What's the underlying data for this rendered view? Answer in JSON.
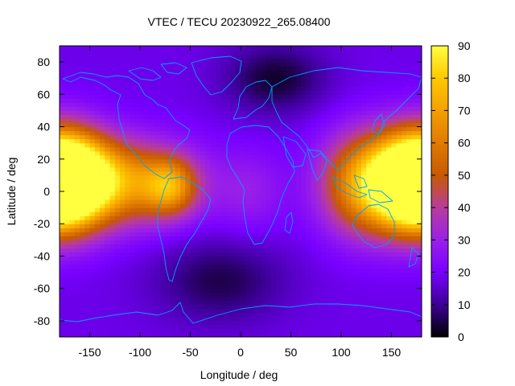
{
  "chart_data": {
    "type": "heatmap",
    "title": "VTEC / TECU 20230922_265.08400",
    "xlabel": "Longitude / deg",
    "ylabel": "Latitude / deg",
    "xlim": [
      -180,
      180
    ],
    "ylim": [
      -90,
      90
    ],
    "xticks": [
      -150,
      -100,
      -50,
      0,
      50,
      100,
      150
    ],
    "yticks": [
      -80,
      -60,
      -40,
      -20,
      0,
      20,
      40,
      60,
      80
    ],
    "colorbar": {
      "range": [
        0,
        90
      ],
      "ticks": [
        0,
        10,
        20,
        30,
        40,
        50,
        60,
        70,
        80,
        90
      ],
      "colormap": [
        "#000000",
        "#3c0096",
        "#7800ff",
        "#a82cd8",
        "#c85a00",
        "#e88400",
        "#ffc800",
        "#ffff40"
      ]
    },
    "grid": {
      "lon_step": 5,
      "lat_step": 2.5
    },
    "features": [
      {
        "lon": -175,
        "lat": 8,
        "vtec": 88,
        "sigma_lon": 30,
        "sigma_lat": 20
      },
      {
        "lon": -120,
        "lat": 6,
        "vtec": 65,
        "sigma_lon": 50,
        "sigma_lat": 18
      },
      {
        "lon": -70,
        "lat": 3,
        "vtec": 52,
        "sigma_lon": 18,
        "sigma_lat": 12
      },
      {
        "lon": 172,
        "lat": 5,
        "vtec": 85,
        "sigma_lon": 30,
        "sigma_lat": 20
      },
      {
        "lon": 120,
        "lat": 5,
        "vtec": 62,
        "sigma_lon": 30,
        "sigma_lat": 22
      },
      {
        "lon": 10,
        "lat": 0,
        "vtec": 28,
        "sigma_lon": 25,
        "sigma_lat": 18
      },
      {
        "lon": 35,
        "lat": 70,
        "vtec": 3,
        "sigma_lon": 35,
        "sigma_lat": 15
      },
      {
        "lon": -20,
        "lat": -55,
        "vtec": 5,
        "sigma_lon": 45,
        "sigma_lat": 18
      }
    ],
    "background_vtec": 18,
    "coastline_color": "#00a0ff"
  }
}
